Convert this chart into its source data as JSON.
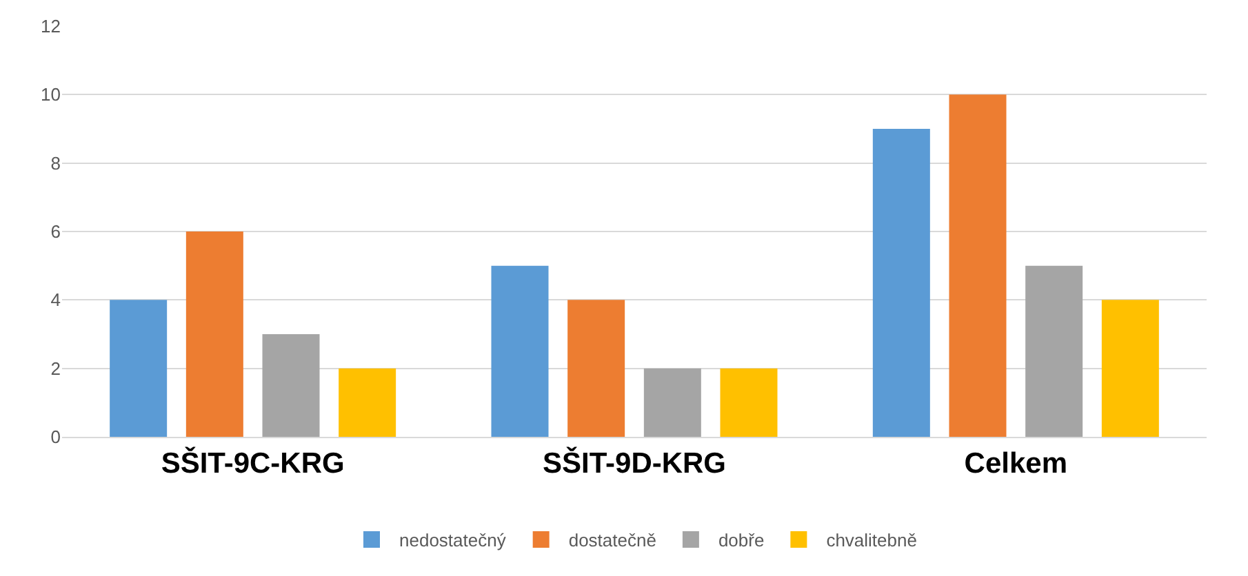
{
  "chart_data": {
    "type": "bar",
    "categories": [
      "SŠIT-9C-KRG",
      "SŠIT-9D-KRG",
      "Celkem"
    ],
    "series": [
      {
        "name": "nedostatečný",
        "color": "#5b9bd5",
        "values": [
          4,
          5,
          9
        ]
      },
      {
        "name": "dostatečně",
        "color": "#ed7d31",
        "values": [
          6,
          4,
          10
        ]
      },
      {
        "name": "dobře",
        "color": "#a5a5a5",
        "values": [
          3,
          2,
          5
        ]
      },
      {
        "name": "chvalitebně",
        "color": "#ffc000",
        "values": [
          2,
          2,
          4
        ]
      }
    ],
    "ylim": [
      0,
      12
    ],
    "yticks": [
      0,
      2,
      4,
      6,
      8,
      10,
      12
    ],
    "grid": "y",
    "legend": "bottom"
  }
}
